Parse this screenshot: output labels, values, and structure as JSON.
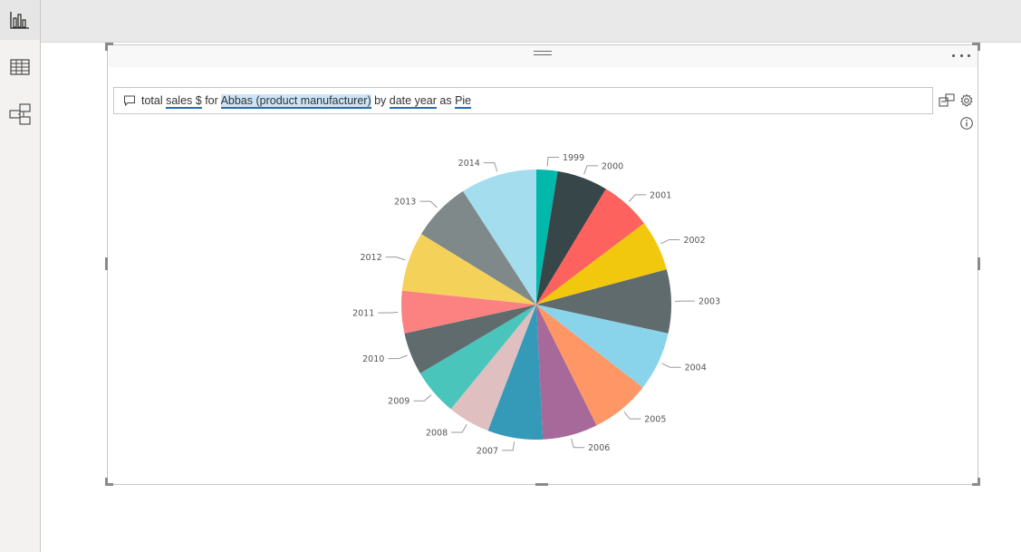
{
  "rail": {
    "items": [
      {
        "name": "report-view",
        "icon": "bar-chart-icon",
        "active": true
      },
      {
        "name": "data-view",
        "icon": "table-grid-icon",
        "active": false
      },
      {
        "name": "model-view",
        "icon": "model-relationship-icon",
        "active": false
      }
    ]
  },
  "qa": {
    "prefix": "total ",
    "t1": "sales $",
    "mid1": " for ",
    "t2": "Abbas (product manufacturer)",
    "mid2": " by ",
    "t3": "date year",
    "mid3": " as ",
    "t4": "Pie"
  },
  "icons": {
    "qa": "speech-bubble-icon",
    "convert": "convert-to-visual-icon",
    "settings": "gear-icon",
    "info": "info-icon",
    "more": "more-options-icon",
    "grip": "drag-grip-icon"
  },
  "chart_data": {
    "type": "pie",
    "title": "",
    "categories": [
      "1999",
      "2000",
      "2001",
      "2002",
      "2003",
      "2004",
      "2005",
      "2006",
      "2007",
      "2008",
      "2009",
      "2010",
      "2011",
      "2012",
      "2013",
      "2014"
    ],
    "values": [
      2.5,
      6.0,
      6.0,
      6.0,
      7.5,
      7.0,
      7.0,
      6.5,
      6.5,
      5.0,
      5.5,
      5.0,
      5.0,
      7.0,
      7.0,
      9.0
    ],
    "colors": [
      "#01B8AA",
      "#374649",
      "#FD625E",
      "#F2C80F",
      "#5F6B6D",
      "#8AD4EB",
      "#FE9666",
      "#A66999",
      "#3599B8",
      "#DFBFBF",
      "#4AC5BB",
      "#5F6B6D",
      "#FB8281",
      "#F4D25A",
      "#7F898A",
      "#A4DDEE"
    ]
  }
}
